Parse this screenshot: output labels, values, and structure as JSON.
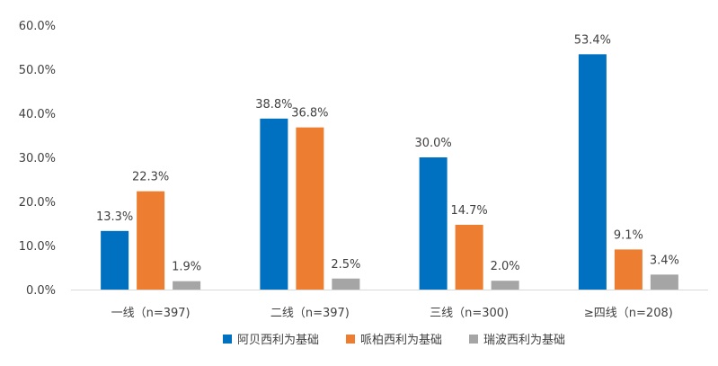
{
  "chart_data": {
    "type": "bar",
    "categories": [
      "一线（n=397)",
      "二线（n=397)",
      "三线（n=300)",
      "≥四线（n=208)"
    ],
    "series": [
      {
        "name": "阿贝西利为基础",
        "color": "#0070C0",
        "values": [
          13.3,
          38.8,
          30.0,
          53.4
        ],
        "labels": [
          "13.3%",
          "38.8%",
          "30.0%",
          "53.4%"
        ]
      },
      {
        "name": "哌柏西利为基础",
        "color": "#ED7D31",
        "values": [
          22.3,
          36.8,
          14.7,
          9.1
        ],
        "labels": [
          "22.3%",
          "36.8%",
          "14.7%",
          "9.1%"
        ]
      },
      {
        "name": "瑞波西利为基础",
        "color": "#A5A5A5",
        "values": [
          1.9,
          2.5,
          2.0,
          3.4
        ],
        "labels": [
          "1.9%",
          "2.5%",
          "2.0%",
          "3.4%"
        ]
      }
    ],
    "y_ticks": [
      "0.0%",
      "10.0%",
      "20.0%",
      "30.0%",
      "40.0%",
      "50.0%",
      "60.0%"
    ],
    "ylim": [
      0,
      60
    ],
    "legend_position": "bottom",
    "grid": false
  }
}
